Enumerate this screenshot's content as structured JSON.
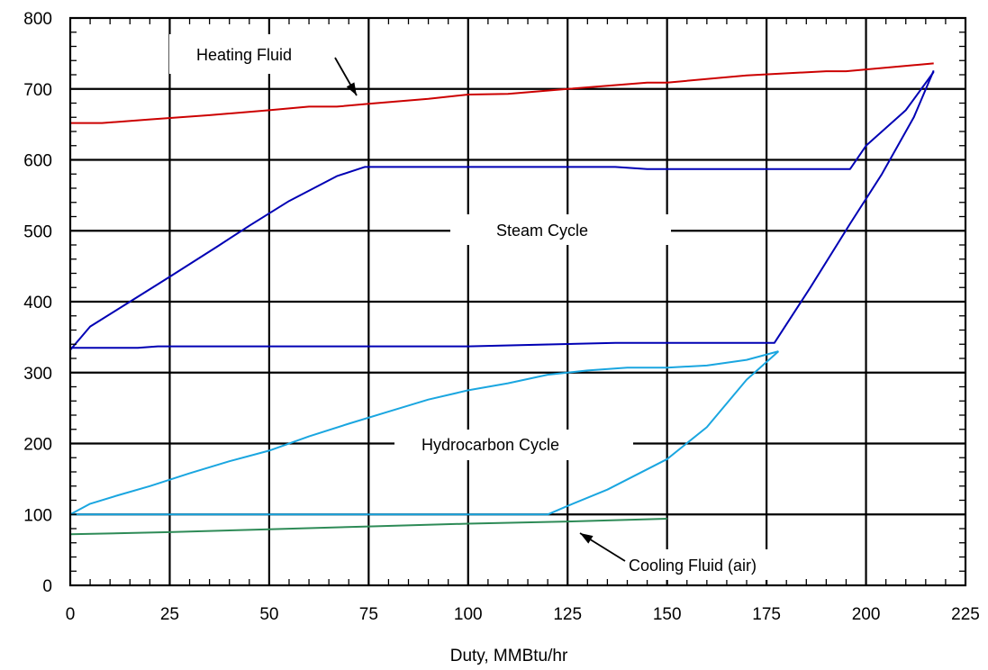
{
  "chart_data": {
    "type": "line",
    "title": "",
    "xlabel": "Duty, MMBtu/hr",
    "ylabel": "",
    "xlim": [
      0,
      225
    ],
    "ylim": [
      0,
      800
    ],
    "xticks": [
      "0",
      "25",
      "50",
      "75",
      "100",
      "125",
      "150",
      "175",
      "200",
      "225"
    ],
    "yticks": [
      "0",
      "100",
      "200",
      "300",
      "400",
      "500",
      "600",
      "700",
      "800"
    ],
    "grid": true,
    "legend": "none",
    "series": [
      {
        "color": "#cc0000",
        "x": [
          0,
          8,
          20,
          35,
          50,
          60,
          67,
          75,
          90,
          100,
          110,
          125,
          145,
          150,
          170,
          190,
          195,
          217
        ],
        "y": [
          652,
          652,
          657,
          663,
          670,
          675,
          675,
          679,
          686,
          692,
          693,
          700,
          709,
          709,
          719,
          725,
          725,
          736
        ]
      },
      {
        "color": "#0000b4",
        "x": [
          0,
          8,
          17,
          22,
          35,
          45,
          60,
          67,
          74,
          100,
          137,
          145,
          160,
          175,
          177,
          186,
          196,
          204,
          212,
          217
        ],
        "y": [
          335,
          335,
          335,
          337,
          337,
          337,
          337,
          337,
          337,
          337,
          342,
          342,
          342,
          342,
          342,
          420,
          510,
          580,
          660,
          726
        ]
      },
      {
        "color": "#0000b4",
        "x": [
          0,
          5,
          15,
          25,
          37,
          45,
          55,
          67,
          74,
          100,
          120,
          137,
          145,
          160,
          176,
          196,
          200,
          210,
          217
        ],
        "y": [
          332,
          365,
          400,
          435,
          478,
          507,
          542,
          577,
          590,
          590,
          590,
          590,
          587,
          587,
          587,
          587,
          620,
          670,
          724
        ]
      },
      {
        "color": "#1aa6e0",
        "x": [
          0,
          10,
          20,
          30,
          40,
          50,
          60,
          70,
          80,
          90,
          100,
          110,
          120,
          125,
          135,
          150,
          160,
          170,
          178
        ],
        "y": [
          100,
          100,
          100,
          100,
          100,
          100,
          100,
          100,
          100,
          100,
          100,
          100,
          100,
          112,
          135,
          178,
          223,
          290,
          330
        ]
      },
      {
        "color": "#1aa6e0",
        "x": [
          0,
          5,
          12,
          20,
          30,
          40,
          50,
          60,
          70,
          80,
          90,
          100,
          110,
          120,
          130,
          140,
          150,
          160,
          170,
          178
        ],
        "y": [
          100,
          115,
          127,
          140,
          158,
          175,
          190,
          210,
          228,
          245,
          262,
          275,
          285,
          297,
          303,
          307,
          307,
          310,
          318,
          330
        ]
      },
      {
        "color": "#2e8b57",
        "x": [
          0,
          25,
          50,
          75,
          100,
          125,
          150
        ],
        "y": [
          72,
          75,
          79,
          83,
          87,
          90,
          94
        ]
      }
    ],
    "annotations": [
      {
        "text": "Heating Fluid"
      },
      {
        "text": "Steam Cycle"
      },
      {
        "text": "Hydrocarbon Cycle"
      },
      {
        "text": "Cooling Fluid (air)"
      }
    ]
  }
}
